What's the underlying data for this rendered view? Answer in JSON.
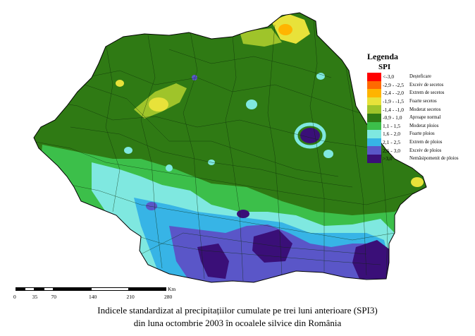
{
  "legend": {
    "title": "Legenda",
    "subtitle": "SPI",
    "items": [
      {
        "range": "<-3,0",
        "label": "Deșteficare",
        "color": "#ff0000"
      },
      {
        "range": "-2,9 - -2,5",
        "label": "Exceiv de secetos",
        "color": "#ff6a00"
      },
      {
        "range": "-2,4 - -2,0",
        "label": "Extrem de secetos",
        "color": "#ffb400"
      },
      {
        "range": "-1,9 - -1,5",
        "label": "Foarte secetos",
        "color": "#e8e23a"
      },
      {
        "range": "-1,4 - -1,0",
        "label": "Moderat secetos",
        "color": "#9fc42a"
      },
      {
        "range": "-0,9 - 1,0",
        "label": "Aproape normal",
        "color": "#2f7a14"
      },
      {
        "range": "1,1 - 1,5",
        "label": "Moderat ploios",
        "color": "#3cbf4a"
      },
      {
        "range": "1,6 - 2,0",
        "label": "Foarte ploios",
        "color": "#7fe8e0"
      },
      {
        "range": "2,1 - 2,5",
        "label": "Extrem de ploios",
        "color": "#37b4e6"
      },
      {
        "range": "2,6 - 3,0",
        "label": "Exceiv de ploios",
        "color": "#5a56c8"
      },
      {
        "range": ">3,0",
        "label": "Nemăsipomenit de ploios",
        "color": "#3a0f78"
      }
    ]
  },
  "scale": {
    "unit": "Km",
    "ticks": [
      "0",
      "35",
      "70",
      "140",
      "210",
      "280"
    ]
  },
  "caption": {
    "line1": "Indicele standardizat al precipitațiilor cumulate pe trei luni anterioare (SPI3)",
    "line2": "din luna octombrie 2003 în ocoalele silvice din România"
  }
}
